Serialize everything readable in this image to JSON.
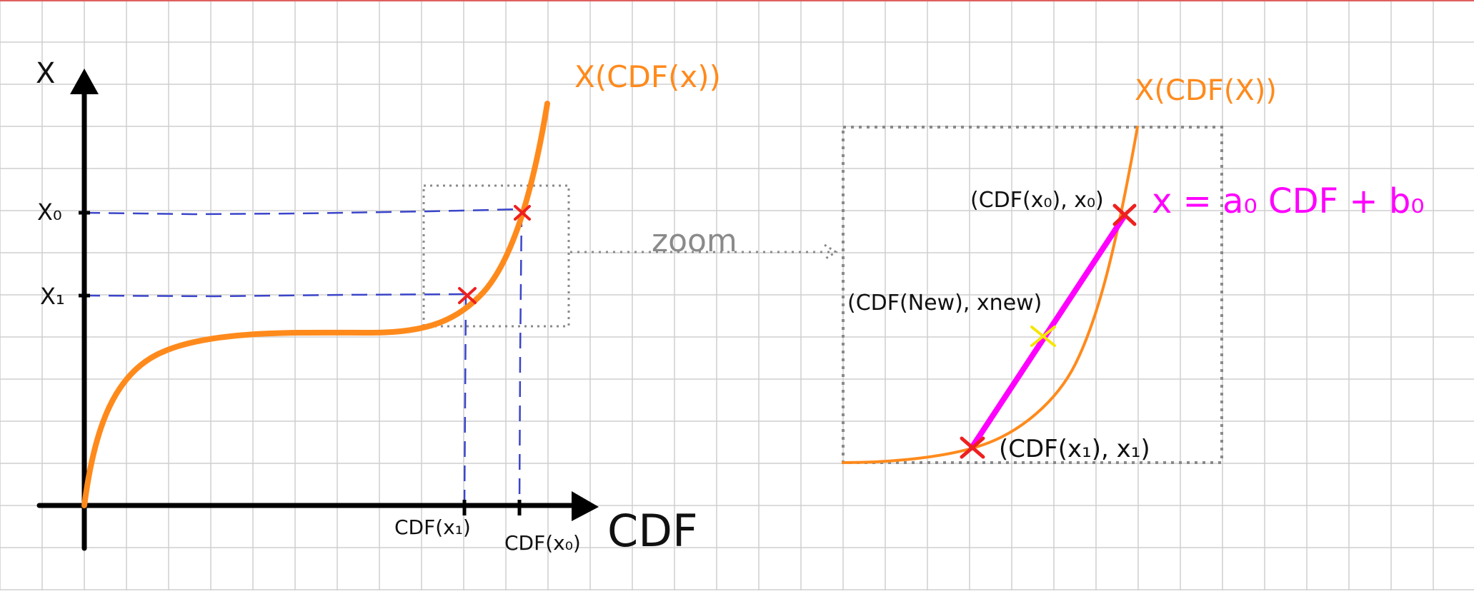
{
  "colors": {
    "grid": "#cfcfcf",
    "top_rule": "#e06060",
    "axis": "#000000",
    "curve": "#ff8a1c",
    "guide": "#3b45c9",
    "marker": "#ee2020",
    "interp_line": "#ff00ff",
    "new_point": "#f5e600",
    "zoom_box": "#8a8a8a",
    "text": "#111111"
  },
  "left_plot": {
    "y_axis_label": "X",
    "x_axis_label": "CDF",
    "curve_label": "X(CDF(x))",
    "y_ticks": [
      {
        "label": "X₀",
        "value": "x0"
      },
      {
        "label": "X₁",
        "value": "x1"
      }
    ],
    "x_ticks": [
      {
        "label": "CDF(x₁)",
        "value": "cdf_x1"
      },
      {
        "label": "CDF(x₀)",
        "value": "cdf_x0"
      }
    ]
  },
  "zoom_label": "zoom",
  "right_plot": {
    "curve_label": "X(CDF(X))",
    "point_top": "(CDF(x₀), x₀)",
    "point_new": "(CDF(New), xnew)",
    "point_bottom": "(CDF(x₁), x₁)",
    "equation": "x = a₀ CDF + b₀"
  }
}
